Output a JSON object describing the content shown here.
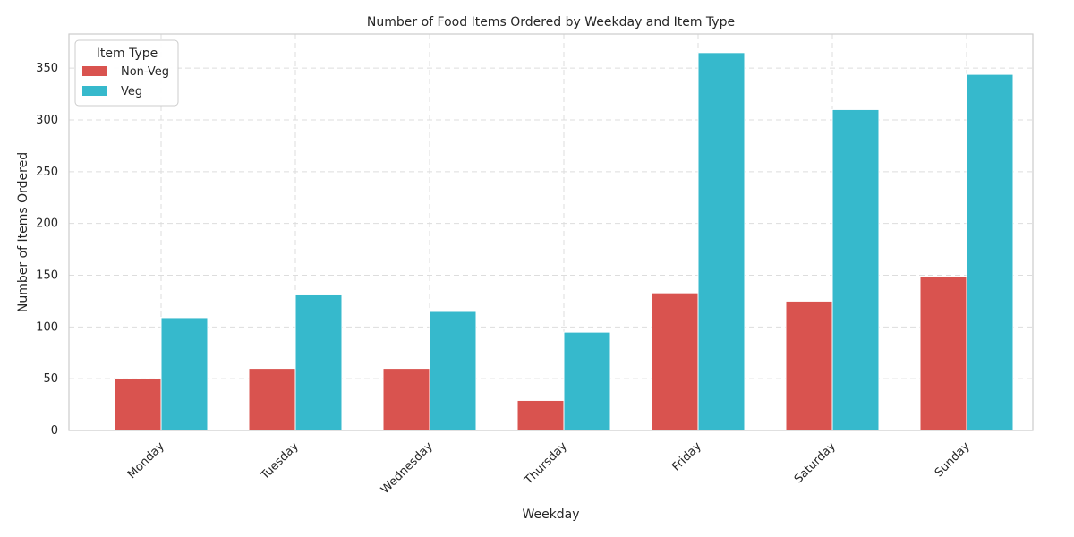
{
  "chart_data": {
    "type": "bar",
    "title": "Number of Food Items Ordered by Weekday and Item Type",
    "xlabel": "Weekday",
    "ylabel": "Number of Items Ordered",
    "categories": [
      "Monday",
      "Tuesday",
      "Wednesday",
      "Thursday",
      "Friday",
      "Saturday",
      "Sunday"
    ],
    "series": [
      {
        "name": "Non-Veg",
        "color": "#d9534f",
        "values": [
          50,
          60,
          60,
          29,
          133,
          125,
          149
        ]
      },
      {
        "name": "Veg",
        "color": "#36b9cc",
        "values": [
          109,
          131,
          115,
          95,
          365,
          310,
          344
        ]
      }
    ],
    "ylim": [
      0,
      383
    ],
    "yticks": [
      0,
      50,
      100,
      150,
      200,
      250,
      300,
      350
    ],
    "grid": true,
    "legend": {
      "title": "Item Type",
      "placement": "top-left"
    }
  }
}
